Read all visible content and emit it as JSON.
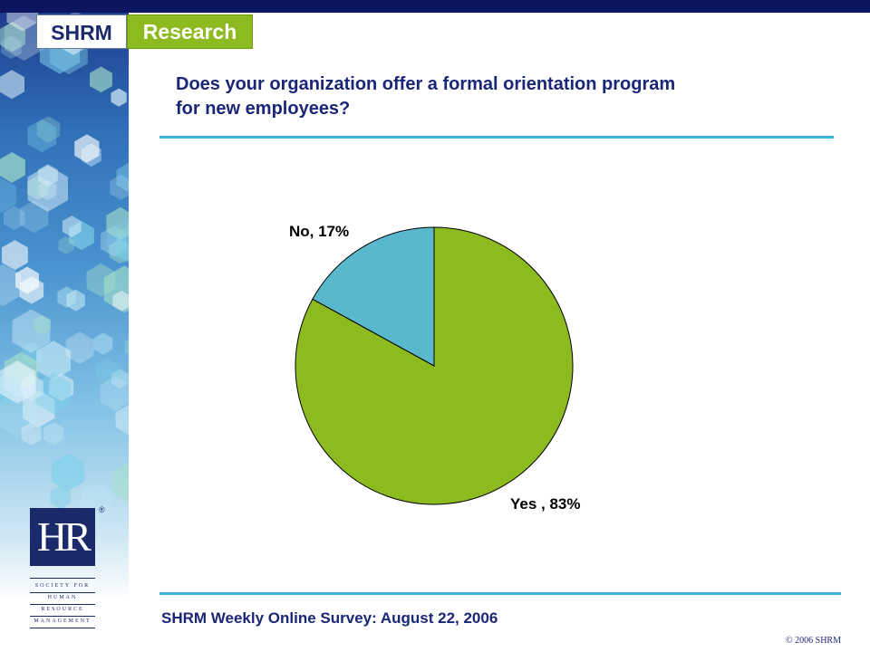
{
  "header": {
    "logo_left": "SHRM",
    "logo_right": "Research"
  },
  "question": {
    "line1": "Does your organization offer a formal orientation program",
    "line2": "for new employees?"
  },
  "footer": {
    "source": "SHRM Weekly Online Survey: August 22, 2006",
    "copyright": "© 2006 SHRM"
  },
  "hr_logo": {
    "mark": "HR",
    "words": [
      "SOCIETY FOR",
      "HUMAN",
      "RESOURCE",
      "MANAGEMENT"
    ]
  },
  "colors": {
    "top_bar": "#0b1560",
    "title": "#1a2677",
    "rule": "#3cb4dc",
    "yes_slice": "#8dbb1f",
    "no_slice": "#5ab8cc"
  },
  "chart_data": {
    "type": "pie",
    "title": "",
    "slices": [
      {
        "label": "Yes",
        "value": 83,
        "display": "Yes , 83%",
        "color": "#8dbb1f"
      },
      {
        "label": "No",
        "value": 17,
        "display": "No, 17%",
        "color": "#5ab8cc"
      }
    ]
  }
}
